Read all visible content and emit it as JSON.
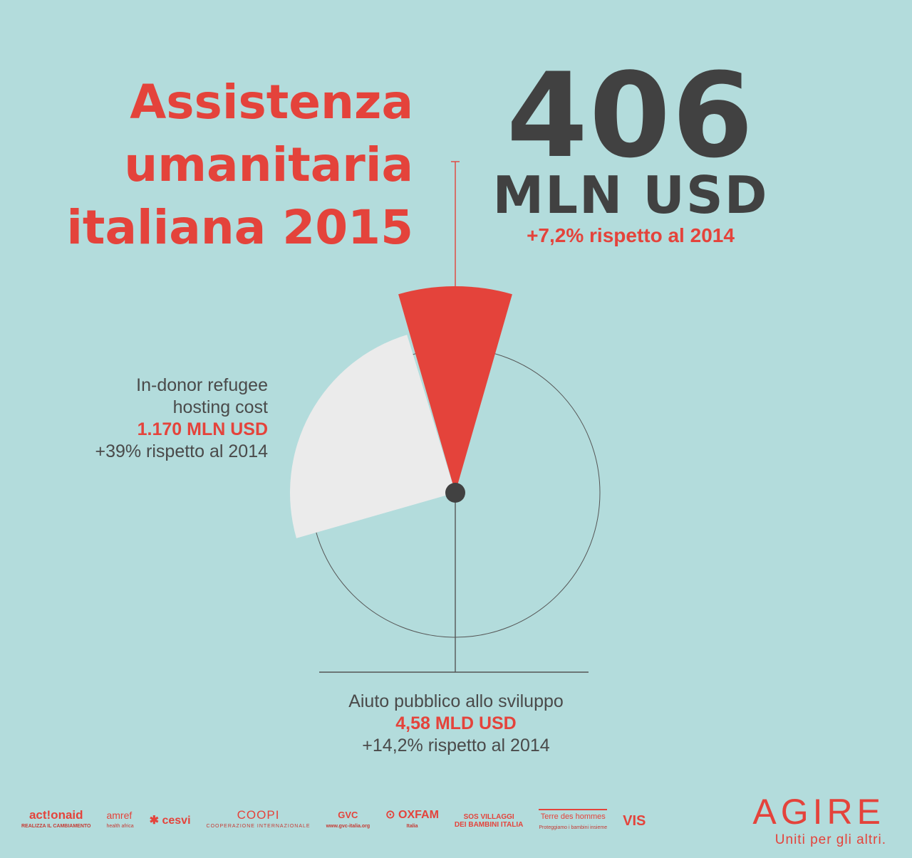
{
  "title": {
    "line1": "Assistenza",
    "line2": "umanitaria",
    "line3": "italiana 2015"
  },
  "humanitarian": {
    "value": "406",
    "unit": "MLN USD",
    "change": "+7,2% rispetto al 2014"
  },
  "refugee": {
    "label_line1": "In-donor refugee",
    "label_line2": "hosting cost",
    "value": "1.170 MLN USD",
    "change": "+39% rispetto al 2014"
  },
  "aps": {
    "label": "Aiuto pubblico allo sviluppo",
    "value": "4,58 MLD USD",
    "change": "+14,2% rispetto al 2014"
  },
  "colors": {
    "background": "#b3dcdc",
    "accent": "#e4433b",
    "dark": "#414141",
    "refugee_sector": "#ebebeb"
  },
  "chart_data": {
    "type": "pie",
    "categories": [
      "Assistenza umanitaria italiana 2015",
      "In-donor refugee hosting cost",
      "Aiuto pubblico allo sviluppo"
    ],
    "values": [
      406,
      1170,
      4580
    ],
    "units": [
      "MLN USD",
      "MLN USD",
      "MLN USD"
    ]
  },
  "logos": {
    "actionaid": {
      "name": "act!onaid",
      "tagline": "REALIZZA IL CAMBIAMENTO"
    },
    "amref": {
      "name": "amref",
      "sub": "health africa"
    },
    "cesvi": {
      "name": "cesvi"
    },
    "coopi": {
      "name": "COOPI",
      "sub": "COOPERAZIONE INTERNAZIONALE"
    },
    "gvc": {
      "name": "GVC",
      "url": "www.gvc-italia.org"
    },
    "oxfam": {
      "name": "OXFAM",
      "sub": "Italia"
    },
    "sos": {
      "line1": "SOS VILLAGGI",
      "line2": "DEI BAMBINI ITALIA"
    },
    "tdh": {
      "name": "Terre des hommes",
      "tagline": "Proteggiamo i bambini insieme"
    },
    "vis": {
      "name": "VIS"
    }
  },
  "agire": {
    "name": "AGIRE",
    "tagline": "Uniti per gli altri."
  }
}
